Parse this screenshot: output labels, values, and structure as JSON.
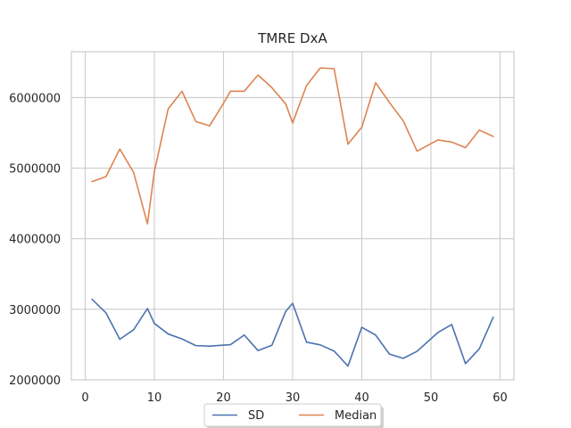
{
  "chart_data": {
    "type": "line",
    "title": "TMRE DxA",
    "xlabel": "",
    "ylabel": "",
    "xlim": [
      -2,
      62
    ],
    "ylim": [
      2000000,
      6650000
    ],
    "x_ticks": [
      0,
      10,
      20,
      30,
      40,
      50,
      60
    ],
    "y_ticks": [
      2000000,
      3000000,
      4000000,
      5000000,
      6000000
    ],
    "x_tick_labels": [
      "0",
      "10",
      "20",
      "30",
      "40",
      "50",
      "60"
    ],
    "y_tick_labels": [
      "2000000",
      "3000000",
      "4000000",
      "5000000",
      "6000000"
    ],
    "grid": true,
    "legend_placement": "bottom-center",
    "x": [
      1,
      3,
      5,
      7,
      9,
      10,
      12,
      14,
      16,
      18,
      20,
      21,
      23,
      25,
      27,
      29,
      30,
      32,
      34,
      36,
      38,
      40,
      42,
      44,
      46,
      48,
      51,
      53,
      55,
      57,
      59
    ],
    "series": [
      {
        "name": "SD",
        "color": "#4c72b0",
        "values": [
          3140000,
          2950000,
          2575000,
          2710000,
          3010000,
          2800000,
          2650000,
          2580000,
          2485000,
          2478000,
          2492000,
          2498000,
          2635000,
          2415000,
          2490000,
          2970000,
          3085000,
          2535000,
          2495000,
          2408000,
          2195000,
          2745000,
          2635000,
          2365000,
          2305000,
          2405000,
          2670000,
          2785000,
          2230000,
          2440000,
          2885000
        ]
      },
      {
        "name": "Median",
        "color": "#dd8452",
        "values": [
          4810000,
          4880000,
          5270000,
          4940000,
          4210000,
          4950000,
          5840000,
          6090000,
          5660000,
          5600000,
          5920000,
          6090000,
          6090000,
          6320000,
          6140000,
          5910000,
          5640000,
          6170000,
          6420000,
          6410000,
          5340000,
          5580000,
          6210000,
          5930000,
          5670000,
          5240000,
          5400000,
          5370000,
          5290000,
          5540000,
          5450000
        ]
      }
    ]
  }
}
